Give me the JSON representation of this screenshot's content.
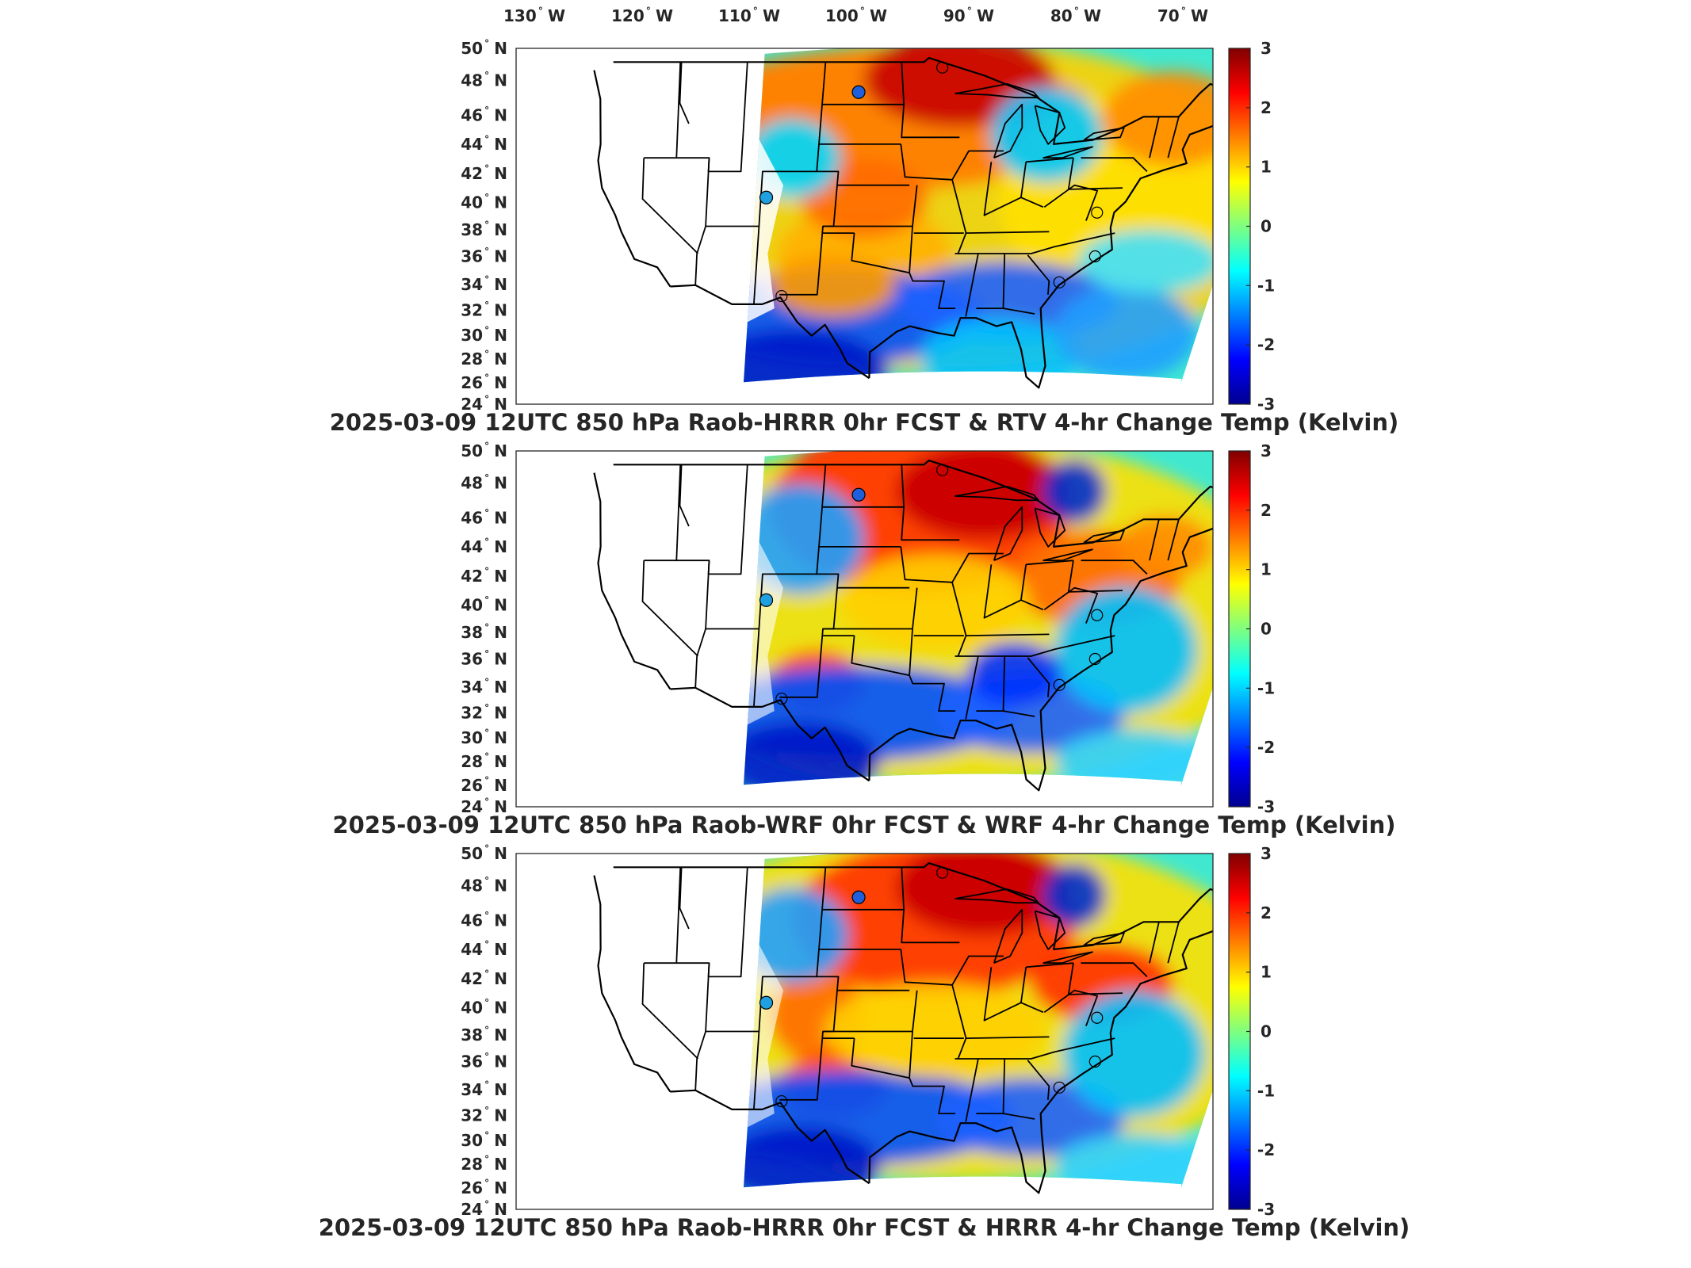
{
  "lon_labels": [
    {
      "deg": "130",
      "hem": "W"
    },
    {
      "deg": "120",
      "hem": "W"
    },
    {
      "deg": "110",
      "hem": "W"
    },
    {
      "deg": "100",
      "hem": "W"
    },
    {
      "deg": "90",
      "hem": "W"
    },
    {
      "deg": "80",
      "hem": "W"
    },
    {
      "deg": "70",
      "hem": "W"
    }
  ],
  "lat_labels": [
    {
      "deg": "50",
      "hem": "N"
    },
    {
      "deg": "48",
      "hem": "N"
    },
    {
      "deg": "46",
      "hem": "N"
    },
    {
      "deg": "44",
      "hem": "N"
    },
    {
      "deg": "42",
      "hem": "N"
    },
    {
      "deg": "40",
      "hem": "N"
    },
    {
      "deg": "38",
      "hem": "N"
    },
    {
      "deg": "36",
      "hem": "N"
    },
    {
      "deg": "34",
      "hem": "N"
    },
    {
      "deg": "32",
      "hem": "N"
    },
    {
      "deg": "30",
      "hem": "N"
    },
    {
      "deg": "28",
      "hem": "N"
    },
    {
      "deg": "26",
      "hem": "N"
    },
    {
      "deg": "24",
      "hem": "N"
    }
  ],
  "colorbar": {
    "ticks": [
      "3",
      "2",
      "1",
      "0",
      "-1",
      "-2",
      "-3"
    ],
    "min": -3,
    "max": 3,
    "colormap": "jet"
  },
  "panels": [
    {
      "title": "2025-03-09 12UTC 850 hPa Raob-HRRR 0hr FCST & RTV 4-hr Change Temp (Kelvin)",
      "variant": "rtv"
    },
    {
      "title": "2025-03-09 12UTC 850 hPa Raob-WRF 0hr FCST & WRF 4-hr Change Temp (Kelvin)",
      "variant": "wrf"
    },
    {
      "title": "2025-03-09 12UTC 850 hPa Raob-HRRR 0hr FCST & HRRR 4-hr Change Temp (Kelvin)",
      "variant": "hrrr"
    }
  ],
  "colors": {
    "text": "#262626",
    "frame": "#262626",
    "land_blank": "#ffffff"
  }
}
